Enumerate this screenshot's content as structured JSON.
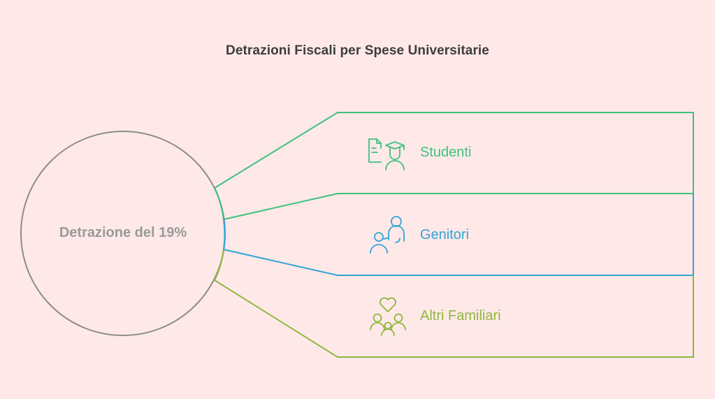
{
  "title": "Detrazioni Fiscali per Spese Universitarie",
  "center": {
    "label": "Detrazione del 19%",
    "color": "#8c8c8c"
  },
  "branches": [
    {
      "label": "Studenti",
      "icon": "student-graduate-icon",
      "color": "#3fc17f"
    },
    {
      "label": "Genitori",
      "icon": "parent-child-icon",
      "color": "#33a4d6"
    },
    {
      "label": "Altri Familiari",
      "icon": "family-heart-icon",
      "color": "#8fb73e"
    }
  ]
}
